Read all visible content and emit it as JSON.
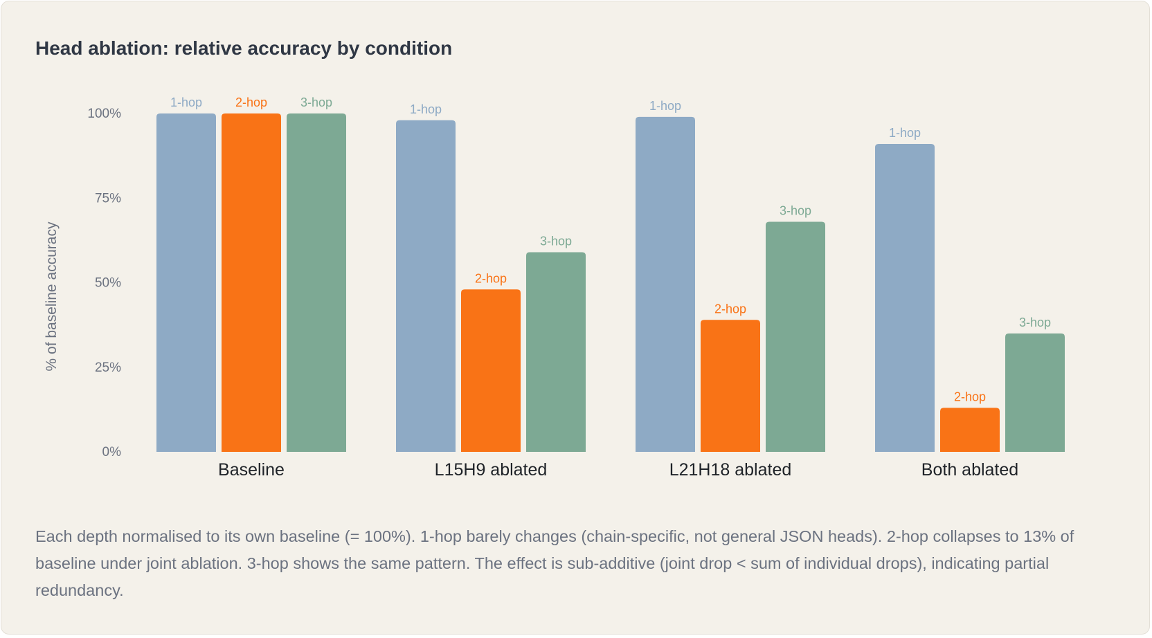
{
  "title": "Head ablation: relative accuracy by condition",
  "caption": "Each depth normalised to its own baseline (= 100%). 1-hop barely changes (chain-specific, not general JSON heads). 2-hop collapses to 13% of baseline under joint ablation. 3-hop shows the same pattern. The effect is sub-additive (joint drop < sum of individual drops), indicating partial redundancy.",
  "chart_data": {
    "type": "bar",
    "title": "Head ablation: relative accuracy by condition",
    "xlabel": "",
    "ylabel": "% of baseline accuracy",
    "ylim": [
      0,
      100
    ],
    "yticks": [
      0,
      25,
      50,
      75,
      100
    ],
    "ytick_labels": [
      "0%",
      "25%",
      "50%",
      "75%",
      "100%"
    ],
    "grid": false,
    "categories": [
      "Baseline",
      "L15H9 ablated",
      "L21H18 ablated",
      "Both ablated"
    ],
    "series": [
      {
        "name": "1-hop",
        "color": "#8eaac5",
        "values": [
          100,
          98,
          99,
          91
        ]
      },
      {
        "name": "2-hop",
        "color": "#f97316",
        "values": [
          100,
          48,
          39,
          13
        ]
      },
      {
        "name": "3-hop",
        "color": "#7da994",
        "values": [
          100,
          59,
          68,
          35
        ]
      }
    ]
  }
}
